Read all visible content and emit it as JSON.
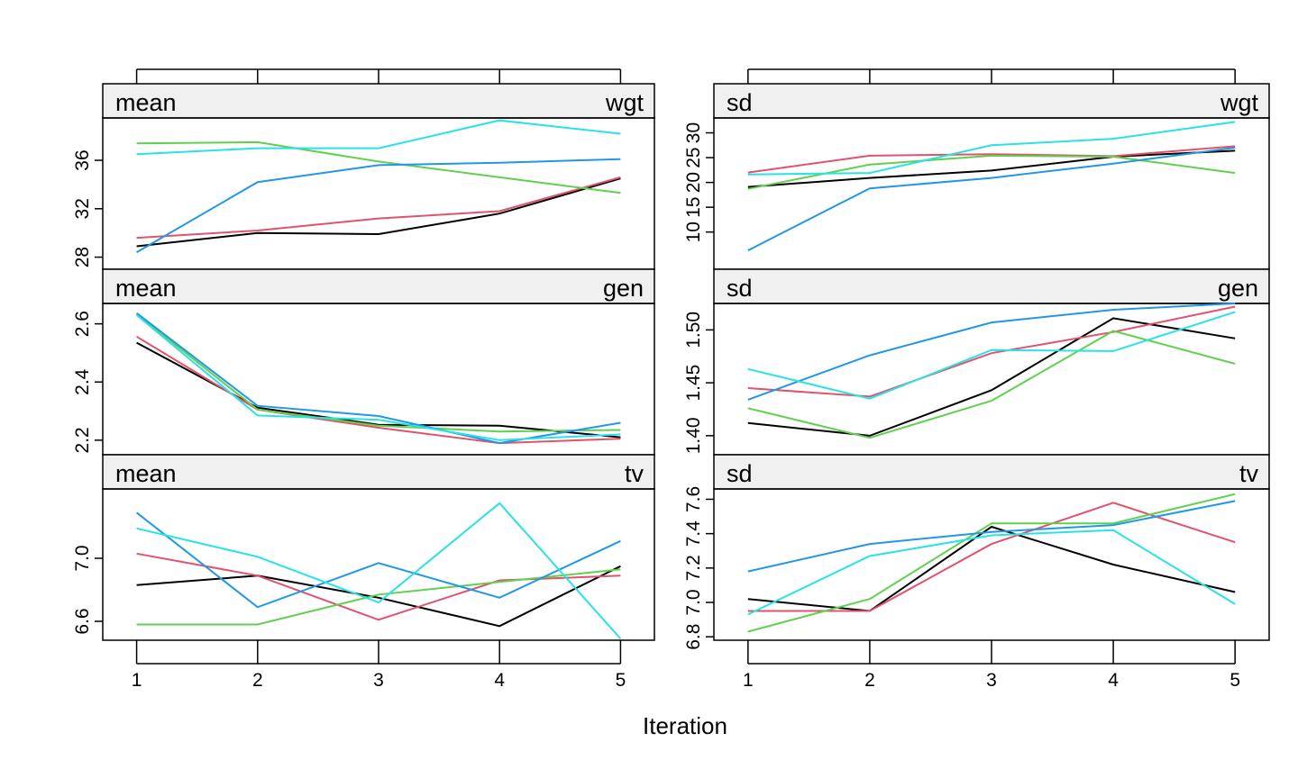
{
  "chart_data": {
    "type": "line",
    "xlabel": "Iteration",
    "x": [
      1,
      2,
      3,
      4,
      5
    ],
    "xlim": [
      0.72,
      5.28
    ],
    "series_colors": [
      "#000000",
      "#DF536B",
      "#61D04F",
      "#2297E6",
      "#28E2E5"
    ],
    "panels": [
      {
        "id": "mean-wgt",
        "stat": "mean",
        "variable": "wgt",
        "ylim": [
          27,
          39.5
        ],
        "yticks": [
          28,
          32,
          36
        ],
        "ytick_labels": [
          "28",
          "32",
          "36"
        ],
        "series": [
          {
            "values": [
              28.9,
              30.0,
              29.9,
              31.6,
              34.5
            ]
          },
          {
            "values": [
              29.6,
              30.2,
              31.2,
              31.8,
              34.6
            ]
          },
          {
            "values": [
              37.4,
              37.5,
              35.9,
              34.6,
              33.3
            ]
          },
          {
            "values": [
              28.4,
              34.2,
              35.6,
              35.8,
              36.1
            ]
          },
          {
            "values": [
              36.5,
              37.0,
              37.0,
              39.3,
              38.2
            ]
          }
        ]
      },
      {
        "id": "sd-wgt",
        "stat": "sd",
        "variable": "wgt",
        "ylim": [
          2.5,
          33
        ],
        "yticks": [
          10,
          15,
          20,
          25,
          30
        ],
        "ytick_labels": [
          "10",
          "15",
          "20",
          "25",
          "30"
        ],
        "series": [
          {
            "values": [
              19.1,
              20.9,
              22.4,
              25.2,
              26.4
            ]
          },
          {
            "values": [
              22.0,
              25.4,
              25.7,
              25.3,
              27.3
            ]
          },
          {
            "values": [
              18.7,
              23.6,
              25.4,
              25.2,
              21.9
            ]
          },
          {
            "values": [
              6.3,
              18.8,
              20.9,
              23.8,
              27.0
            ]
          },
          {
            "values": [
              21.6,
              21.9,
              27.5,
              28.8,
              32.2
            ]
          }
        ]
      },
      {
        "id": "mean-gen",
        "stat": "mean",
        "variable": "gen",
        "ylim": [
          2.15,
          2.67
        ],
        "yticks": [
          2.2,
          2.4,
          2.6
        ],
        "ytick_labels": [
          "2.2",
          "2.4",
          "2.6"
        ],
        "series": [
          {
            "values": [
              2.535,
              2.312,
              2.253,
              2.25,
              2.21
            ]
          },
          {
            "values": [
              2.556,
              2.305,
              2.243,
              2.19,
              2.205
            ]
          },
          {
            "values": [
              2.633,
              2.305,
              2.25,
              2.23,
              2.235
            ]
          },
          {
            "values": [
              2.637,
              2.318,
              2.283,
              2.19,
              2.26
            ]
          },
          {
            "values": [
              2.63,
              2.285,
              2.27,
              2.2,
              2.22
            ]
          }
        ]
      },
      {
        "id": "sd-gen",
        "stat": "sd",
        "variable": "gen",
        "ylim": [
          1.382,
          1.525
        ],
        "yticks": [
          1.4,
          1.45,
          1.5
        ],
        "ytick_labels": [
          "1.40",
          "1.45",
          "1.50"
        ],
        "series": [
          {
            "values": [
              1.412,
              1.4,
              1.443,
              1.511,
              1.492
            ]
          },
          {
            "values": [
              1.445,
              1.437,
              1.478,
              1.498,
              1.522
            ]
          },
          {
            "values": [
              1.426,
              1.398,
              1.433,
              1.499,
              1.468
            ]
          },
          {
            "values": [
              1.434,
              1.476,
              1.507,
              1.519,
              1.525
            ]
          },
          {
            "values": [
              1.463,
              1.435,
              1.481,
              1.48,
              1.517
            ]
          }
        ]
      },
      {
        "id": "mean-tv",
        "stat": "mean",
        "variable": "tv",
        "ylim": [
          6.48,
          7.44
        ],
        "yticks": [
          6.6,
          7.0
        ],
        "ytick_labels": [
          "6.6",
          "7.0"
        ],
        "series": [
          {
            "values": [
              6.83,
              6.89,
              6.75,
              6.57,
              6.95
            ]
          },
          {
            "values": [
              7.03,
              6.89,
              6.61,
              6.86,
              6.89
            ]
          },
          {
            "values": [
              6.58,
              6.58,
              6.77,
              6.85,
              6.93
            ]
          },
          {
            "values": [
              7.29,
              6.69,
              6.97,
              6.75,
              7.11
            ]
          },
          {
            "values": [
              7.19,
              7.01,
              6.72,
              7.35,
              6.49
            ]
          }
        ]
      },
      {
        "id": "sd-tv",
        "stat": "sd",
        "variable": "tv",
        "ylim": [
          6.78,
          7.66
        ],
        "yticks": [
          6.8,
          7.0,
          7.2,
          7.4,
          7.6
        ],
        "ytick_labels": [
          "6.8",
          "7.0",
          "7.2",
          "7.4",
          "7.6"
        ],
        "series": [
          {
            "values": [
              7.02,
              6.95,
              7.44,
              7.22,
              7.06
            ]
          },
          {
            "values": [
              6.95,
              6.95,
              7.34,
              7.58,
              7.35
            ]
          },
          {
            "values": [
              6.83,
              7.02,
              7.46,
              7.46,
              7.63
            ]
          },
          {
            "values": [
              7.18,
              7.34,
              7.41,
              7.45,
              7.59
            ]
          },
          {
            "values": [
              6.93,
              7.27,
              7.39,
              7.42,
              6.99
            ]
          }
        ]
      }
    ]
  }
}
